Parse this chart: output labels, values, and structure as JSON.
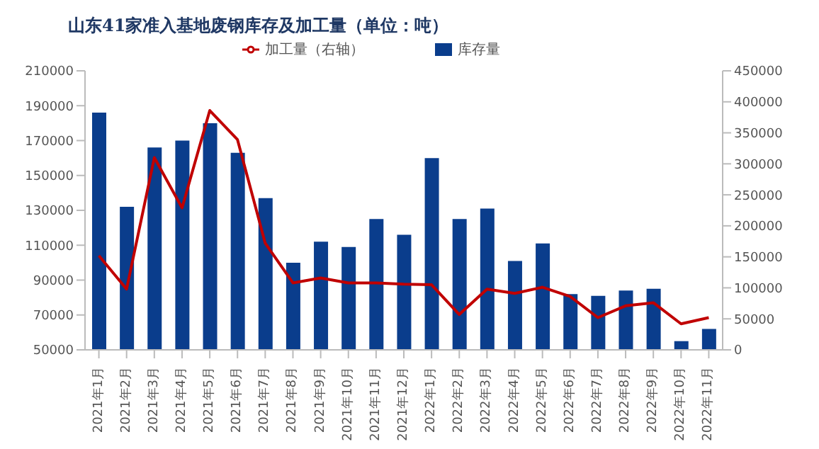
{
  "chart_data": {
    "type": "bar",
    "title": "山东41家准入基地废钢库存及加工量（单位：吨）",
    "categories": [
      "2021年1月",
      "2021年2月",
      "2021年3月",
      "2021年4月",
      "2021年5月",
      "2021年6月",
      "2021年7月",
      "2021年8月",
      "2021年9月",
      "2021年10月",
      "2021年11月",
      "2021年12月",
      "2022年1月",
      "2022年2月",
      "2022年3月",
      "2022年4月",
      "2022年5月",
      "2022年6月",
      "2022年7月",
      "2022年8月",
      "2022年9月",
      "2022年10月",
      "2022年11月"
    ],
    "series": [
      {
        "name": "库存量",
        "color": "#0a3d8c",
        "values": [
          186000,
          132000,
          166000,
          170000,
          180000,
          163000,
          137000,
          100000,
          112000,
          109000,
          125000,
          116000,
          160000,
          125000,
          131000,
          101000,
          111000,
          82000,
          81000,
          84000,
          85000,
          55000,
          62000
        ]
      },
      {
        "name": "加工量（右轴）",
        "type": "line",
        "axis": "y2",
        "color": "#c00000",
        "values": [
          152000,
          98000,
          310000,
          229000,
          386000,
          339000,
          172000,
          108000,
          116000,
          108000,
          108000,
          106000,
          105000,
          57000,
          98000,
          91000,
          101000,
          86000,
          52000,
          71000,
          76000,
          42000,
          52000
        ]
      }
    ],
    "ylim": [
      50000,
      210000
    ],
    "yticks": [
      50000,
      70000,
      90000,
      110000,
      130000,
      150000,
      170000,
      190000,
      210000
    ],
    "y2lim": [
      0,
      450000
    ],
    "y2ticks": [
      0,
      50000,
      100000,
      150000,
      200000,
      250000,
      300000,
      350000,
      400000,
      450000
    ],
    "grid": false,
    "legend": "top",
    "marker": "none"
  }
}
